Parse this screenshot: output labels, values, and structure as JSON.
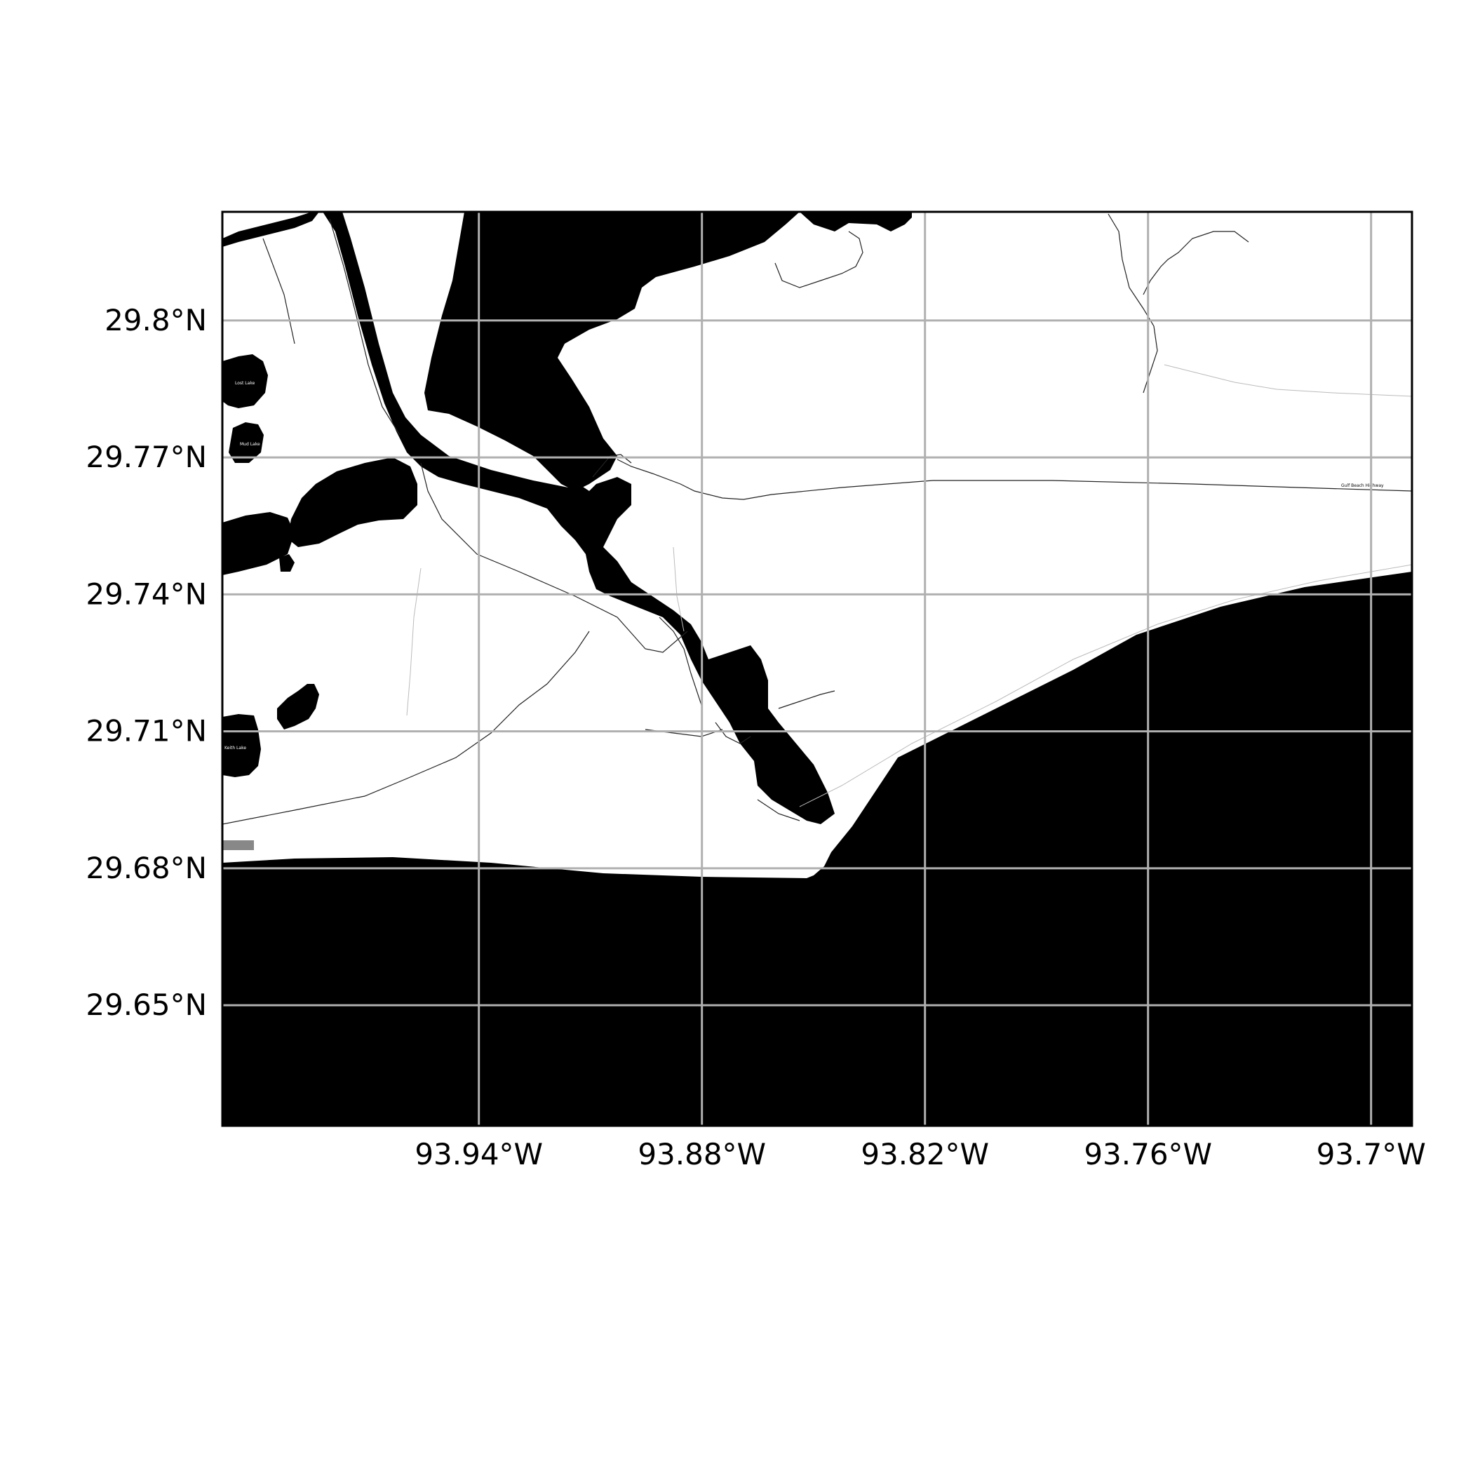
{
  "map": {
    "extent": {
      "lon_min": -94.009,
      "lon_max": -93.689,
      "lat_min": 29.6236,
      "lat_max": 29.8238
    },
    "lon_ticks": [
      {
        "value": -93.94,
        "label": "93.94°W"
      },
      {
        "value": -93.88,
        "label": "93.88°W"
      },
      {
        "value": -93.82,
        "label": "93.82°W"
      },
      {
        "value": -93.76,
        "label": "93.76°W"
      },
      {
        "value": -93.7,
        "label": "93.7°W"
      }
    ],
    "lat_ticks": [
      {
        "value": 29.8,
        "label": "29.8°N"
      },
      {
        "value": 29.77,
        "label": "29.77°N"
      },
      {
        "value": 29.74,
        "label": "29.74°N"
      },
      {
        "value": 29.71,
        "label": "29.71°N"
      },
      {
        "value": 29.68,
        "label": "29.68°N"
      },
      {
        "value": 29.65,
        "label": "29.65°N"
      }
    ],
    "gridlines": true,
    "colors": {
      "water": "#000000",
      "land": "#ffffff",
      "grid": "#b0b0b0",
      "frame": "#000000"
    },
    "labels": {
      "lake_north": "Lost Lake",
      "lake_mid": "Mud Lake",
      "lake_south": "Keith Lake",
      "highway": "Gulf Beach Highway"
    }
  }
}
